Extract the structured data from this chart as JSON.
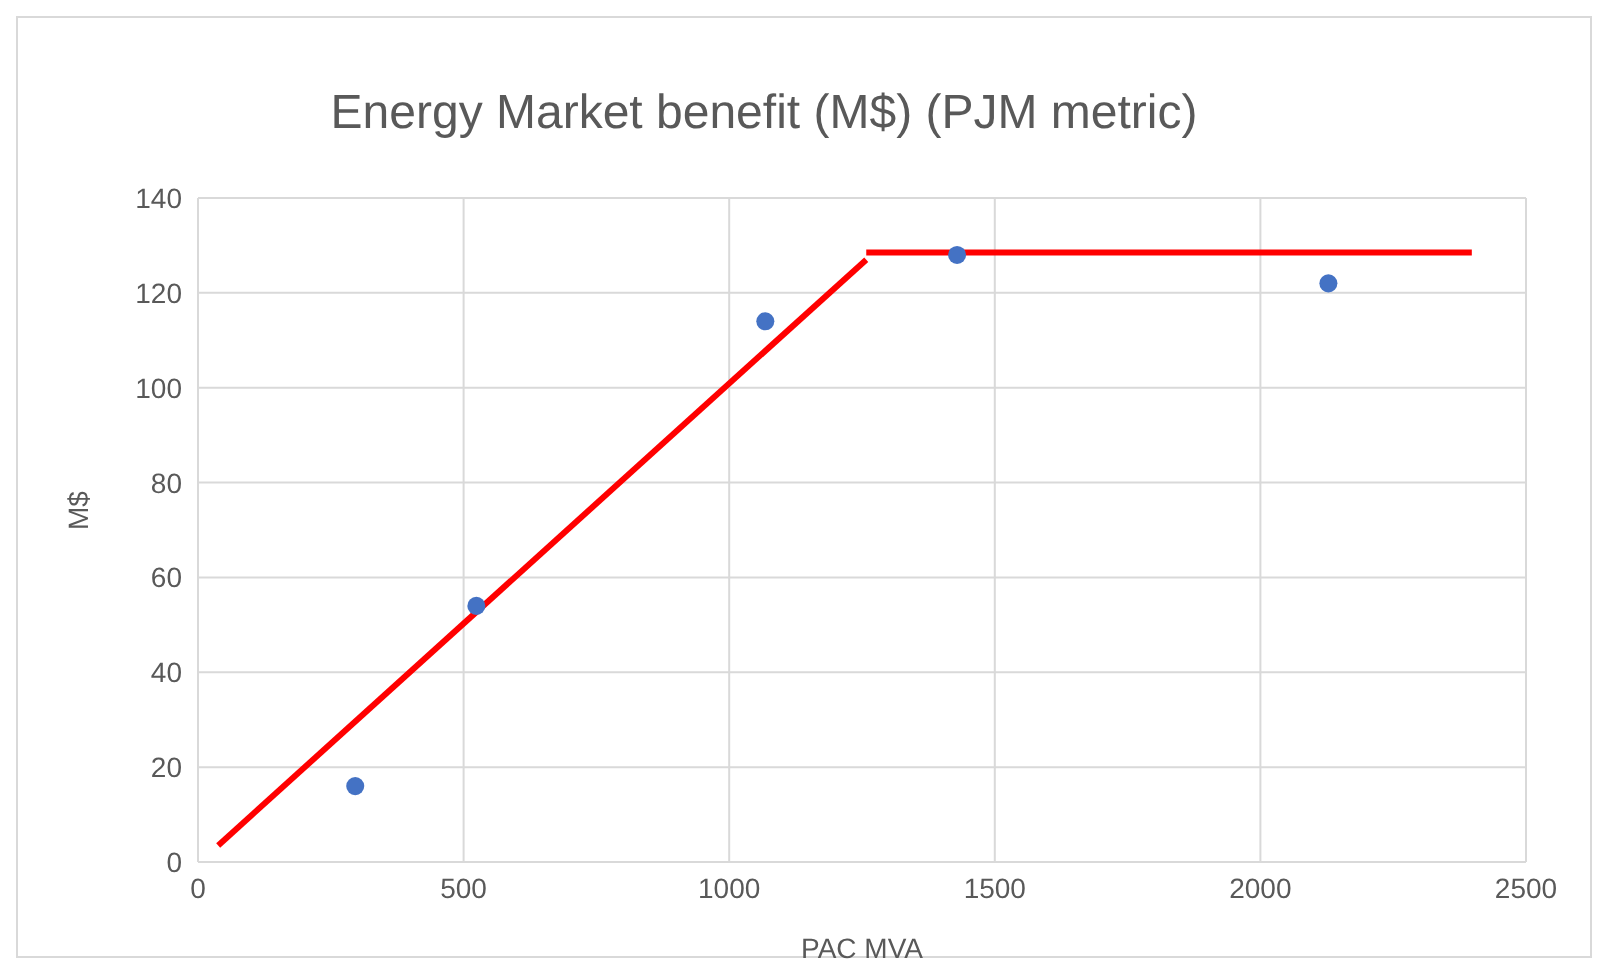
{
  "chart_data": {
    "type": "scatter",
    "title": "Energy Market benefit (M$) (PJM metric)",
    "xlabel": "PAC MVA",
    "ylabel": "M$",
    "series": [
      {
        "marker": "circle",
        "color": "#4472c4",
        "x": [
          296,
          524,
          1068,
          1429,
          2128
        ],
        "values": [
          16,
          54,
          114,
          128,
          122
        ]
      },
      {
        "type": "line",
        "marker": "none",
        "color": "#ff0000",
        "x": [
          38,
          1258
        ],
        "values": [
          3.5,
          127
        ]
      },
      {
        "type": "line",
        "marker": "none",
        "color": "#ff0000",
        "x": [
          1258,
          2398
        ],
        "values": [
          128.5,
          128.5
        ]
      }
    ],
    "xlim": [
      0,
      2500
    ],
    "xticks": [
      0,
      500,
      1000,
      1500,
      2000,
      2500
    ],
    "ylim": [
      0,
      140
    ],
    "yticks": [
      0,
      20,
      40,
      60,
      80,
      100,
      120,
      140
    ],
    "grid": true,
    "line_style": "solid",
    "legend": false
  }
}
